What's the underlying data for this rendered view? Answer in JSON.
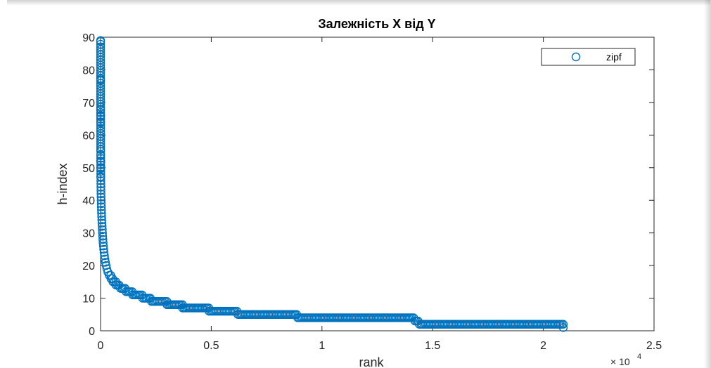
{
  "chart_data": {
    "type": "scatter",
    "title": "Залежність X від Y",
    "xlabel": "rank",
    "ylabel": "h-index",
    "x_exponent_base": "× 10",
    "x_exponent_power": "4",
    "xlim": [
      0,
      25000
    ],
    "ylim": [
      0,
      90
    ],
    "x_ticks": [
      {
        "value": 0,
        "label": "0"
      },
      {
        "value": 5000,
        "label": "0.5"
      },
      {
        "value": 10000,
        "label": "1"
      },
      {
        "value": 15000,
        "label": "1.5"
      },
      {
        "value": 20000,
        "label": "2"
      },
      {
        "value": 25000,
        "label": "2.5"
      }
    ],
    "y_ticks": [
      {
        "value": 0,
        "label": "0"
      },
      {
        "value": 10,
        "label": "10"
      },
      {
        "value": 20,
        "label": "20"
      },
      {
        "value": 30,
        "label": "30"
      },
      {
        "value": 40,
        "label": "40"
      },
      {
        "value": 50,
        "label": "50"
      },
      {
        "value": 60,
        "label": "60"
      },
      {
        "value": 70,
        "label": "70"
      },
      {
        "value": 80,
        "label": "80"
      },
      {
        "value": 90,
        "label": "90"
      }
    ],
    "grid": false,
    "legend": {
      "position": "top-right"
    },
    "marker_color": "#0072BD",
    "series": [
      {
        "name": "zipf",
        "points": [
          [
            1,
            89
          ],
          [
            2,
            77
          ],
          [
            3,
            68
          ],
          [
            4,
            66
          ],
          [
            5,
            64
          ],
          [
            6,
            55
          ],
          [
            7,
            54
          ],
          [
            8,
            52
          ],
          [
            9,
            50
          ],
          [
            10,
            47
          ],
          [
            12,
            46
          ],
          [
            14,
            45
          ],
          [
            16,
            44
          ],
          [
            18,
            43
          ],
          [
            20,
            42
          ],
          [
            24,
            41
          ],
          [
            28,
            40
          ],
          [
            32,
            39
          ],
          [
            36,
            38
          ],
          [
            40,
            37
          ],
          [
            45,
            36
          ],
          [
            50,
            35
          ],
          [
            56,
            34
          ],
          [
            62,
            33
          ],
          [
            70,
            32
          ],
          [
            78,
            31
          ],
          [
            86,
            30
          ],
          [
            95,
            29
          ],
          [
            105,
            28
          ],
          [
            115,
            27
          ],
          [
            128,
            26
          ],
          [
            142,
            25
          ],
          [
            158,
            24
          ],
          [
            175,
            23
          ],
          [
            195,
            22
          ],
          [
            220,
            21
          ],
          [
            250,
            20
          ],
          [
            285,
            19
          ],
          [
            330,
            18
          ],
          [
            390,
            17
          ],
          [
            470,
            16
          ],
          [
            560,
            15
          ],
          [
            700,
            14
          ],
          [
            900,
            13
          ],
          [
            1150,
            12
          ],
          [
            1450,
            11
          ],
          [
            1900,
            10
          ],
          [
            2300,
            9
          ],
          [
            3000,
            8
          ],
          [
            3700,
            7
          ],
          [
            4900,
            6
          ],
          [
            6200,
            5
          ],
          [
            8900,
            4
          ],
          [
            14200,
            3
          ],
          [
            14400,
            2
          ],
          [
            20900,
            1
          ]
        ]
      }
    ]
  }
}
